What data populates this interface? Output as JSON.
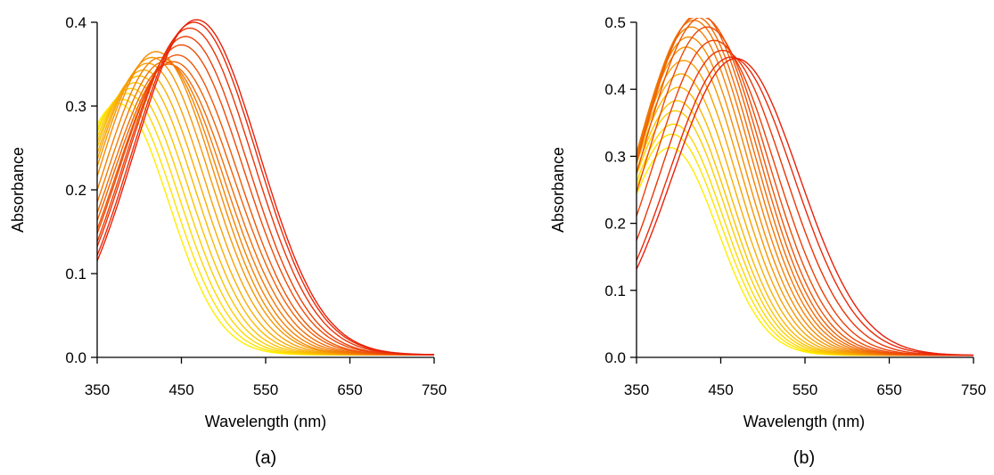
{
  "chart_data": [
    {
      "type": "line",
      "panel_label": "(a)",
      "xlabel": "Wavelength (nm)",
      "ylabel": "Absorbance",
      "xlim": [
        350,
        750
      ],
      "ylim": [
        0,
        0.4
      ],
      "xticks": [
        "350",
        "450",
        "550",
        "650",
        "750"
      ],
      "yticks": [
        "0.0",
        "0.1",
        "0.2",
        "0.3",
        "0.4"
      ],
      "grid": false,
      "legend": "none",
      "color_start": "#ffee00",
      "color_end": "#e8200a",
      "peak_wavelengths": [
        375,
        380,
        385,
        390,
        395,
        400,
        405,
        410,
        415,
        420,
        425,
        430,
        435,
        440,
        445,
        450,
        455,
        460,
        465,
        468
      ],
      "peak_absorbances": [
        0.3,
        0.305,
        0.312,
        0.318,
        0.325,
        0.333,
        0.34,
        0.348,
        0.355,
        0.362,
        0.355,
        0.35,
        0.347,
        0.35,
        0.358,
        0.37,
        0.38,
        0.39,
        0.397,
        0.4
      ],
      "spectral_widths_nm": [
        60,
        61,
        62,
        63,
        64,
        65,
        66,
        67,
        68,
        68,
        69,
        70,
        71,
        72,
        72,
        73,
        73,
        74,
        74,
        74
      ]
    },
    {
      "type": "line",
      "panel_label": "(b)",
      "xlabel": "Wavelength (nm)",
      "ylabel": "Absorbance",
      "xlim": [
        350,
        750
      ],
      "ylim": [
        0,
        0.5
      ],
      "xticks": [
        "350",
        "450",
        "550",
        "650",
        "750"
      ],
      "yticks": [
        "0.0",
        "0.1",
        "0.2",
        "0.3",
        "0.4",
        "0.5"
      ],
      "grid": false,
      "legend": "none",
      "color_start": "#ffee00",
      "color_end": "#e8200a",
      "peak_wavelengths": [
        390,
        392,
        394,
        396,
        398,
        400,
        403,
        406,
        409,
        412,
        415,
        418,
        421,
        424,
        428,
        434,
        442,
        452,
        462,
        468
      ],
      "peak_absorbances": [
        0.31,
        0.33,
        0.345,
        0.365,
        0.38,
        0.4,
        0.42,
        0.44,
        0.46,
        0.475,
        0.49,
        0.5,
        0.505,
        0.51,
        0.505,
        0.49,
        0.47,
        0.455,
        0.445,
        0.443
      ],
      "spectral_widths_nm": [
        56,
        57,
        58,
        59,
        60,
        61,
        62,
        63,
        64,
        65,
        66,
        67,
        68,
        69,
        70,
        71,
        72,
        73,
        74,
        75
      ]
    }
  ]
}
